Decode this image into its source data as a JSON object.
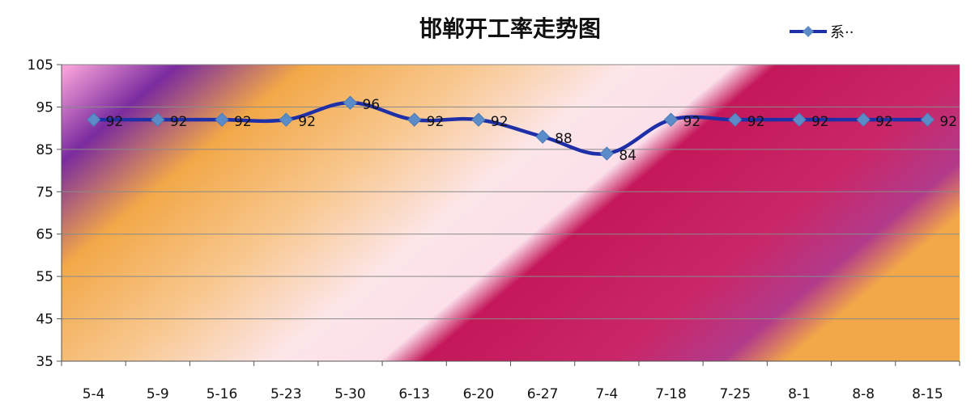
{
  "chart_data": {
    "type": "line",
    "title": "邯郸开工率走势图",
    "categories": [
      "5-4",
      "5-9",
      "5-16",
      "5-23",
      "5-30",
      "6-13",
      "6-20",
      "6-27",
      "7-4",
      "7-18",
      "7-25",
      "8-1",
      "8-8",
      "8-15"
    ],
    "series": [
      {
        "name": "系··",
        "values": [
          92,
          92,
          92,
          92,
          96,
          92,
          92,
          88,
          84,
          92,
          92,
          92,
          92,
          92
        ],
        "color": "#1F2FA8",
        "marker_color": "#5B8CC8"
      }
    ],
    "ylim": [
      35,
      105
    ],
    "yticks": [
      35,
      45,
      55,
      65,
      75,
      85,
      95,
      105
    ],
    "grid": true,
    "legend": "top-right",
    "data_labels": true
  }
}
